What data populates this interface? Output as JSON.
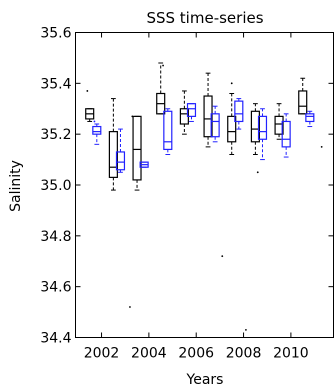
{
  "chart_data": {
    "type": "boxplot",
    "title": "SSS time-series",
    "xlabel": "Years",
    "ylabel": "Salinity",
    "xlim": [
      2000.9,
      2011.8
    ],
    "ylim": [
      34.4,
      35.6
    ],
    "x_ticks": [
      2002,
      2004,
      2006,
      2008,
      2010
    ],
    "y_ticks": [
      34.4,
      34.6,
      34.8,
      35.0,
      35.2,
      35.4,
      35.6
    ],
    "grid": false,
    "legend": "none",
    "series": [
      {
        "color": "#000000",
        "boxes": [
          {
            "x": 2001.5,
            "min": 35.25,
            "q1": 35.26,
            "median": 35.28,
            "q3": 35.3,
            "max": 35.3
          },
          {
            "x": 2002.5,
            "min": 34.98,
            "q1": 35.03,
            "median": 35.07,
            "q3": 35.21,
            "max": 35.34
          },
          {
            "x": 2003.5,
            "min": 34.98,
            "q1": 35.02,
            "median": 35.14,
            "q3": 35.27,
            "max": 35.27
          },
          {
            "x": 2004.5,
            "min": 35.28,
            "q1": 35.28,
            "median": 35.32,
            "q3": 35.36,
            "max": 35.48
          },
          {
            "x": 2005.5,
            "min": 35.2,
            "q1": 35.24,
            "median": 35.28,
            "q3": 35.3,
            "max": 35.37
          },
          {
            "x": 2006.5,
            "min": 35.15,
            "q1": 35.19,
            "median": 35.26,
            "q3": 35.35,
            "max": 35.44
          },
          {
            "x": 2007.5,
            "min": 35.12,
            "q1": 35.17,
            "median": 35.21,
            "q3": 35.27,
            "max": 35.36
          },
          {
            "x": 2008.5,
            "min": 35.12,
            "q1": 35.17,
            "median": 35.22,
            "q3": 35.29,
            "max": 35.32
          },
          {
            "x": 2009.5,
            "min": 35.18,
            "q1": 35.2,
            "median": 35.24,
            "q3": 35.27,
            "max": 35.32
          },
          {
            "x": 2010.5,
            "min": 35.28,
            "q1": 35.28,
            "median": 35.31,
            "q3": 35.37,
            "max": 35.42
          }
        ]
      },
      {
        "color": "#2222ff",
        "boxes": [
          {
            "x": 2001.8,
            "min": 35.16,
            "q1": 35.2,
            "median": 35.21,
            "q3": 35.23,
            "max": 35.24
          },
          {
            "x": 2002.8,
            "min": 35.05,
            "q1": 35.06,
            "median": 35.09,
            "q3": 35.13,
            "max": 35.22
          },
          {
            "x": 2003.8,
            "min": 35.07,
            "q1": 35.07,
            "median": 35.08,
            "q3": 35.09,
            "max": 35.09
          },
          {
            "x": 2004.8,
            "min": 35.12,
            "q1": 35.14,
            "median": 35.17,
            "q3": 35.29,
            "max": 35.3
          },
          {
            "x": 2005.8,
            "min": 35.25,
            "q1": 35.27,
            "median": 35.3,
            "q3": 35.32,
            "max": 35.32
          },
          {
            "x": 2006.8,
            "min": 35.17,
            "q1": 35.19,
            "median": 35.25,
            "q3": 35.28,
            "max": 35.31
          },
          {
            "x": 2007.8,
            "min": 35.22,
            "q1": 35.25,
            "median": 35.28,
            "q3": 35.33,
            "max": 35.34
          },
          {
            "x": 2008.8,
            "min": 35.1,
            "q1": 35.18,
            "median": 35.21,
            "q3": 35.27,
            "max": 35.3
          },
          {
            "x": 2009.8,
            "min": 35.11,
            "q1": 35.15,
            "median": 35.18,
            "q3": 35.25,
            "max": 35.28
          },
          {
            "x": 2010.8,
            "min": 35.23,
            "q1": 35.25,
            "median": 35.27,
            "q3": 35.28,
            "max": 35.29
          }
        ]
      }
    ],
    "outliers": [
      {
        "x": 2001.4,
        "y": 35.37,
        "color": "#000000"
      },
      {
        "x": 2001.7,
        "y": 35.25,
        "color": "#2222ff"
      },
      {
        "x": 2003.3,
        "y": 35.27,
        "color": "#000000"
      },
      {
        "x": 2004.6,
        "y": 35.47,
        "color": "#000000"
      },
      {
        "x": 2007.5,
        "y": 35.4,
        "color": "#000000"
      },
      {
        "x": 2008.6,
        "y": 35.05,
        "color": "#000000"
      },
      {
        "x": 2011.3,
        "y": 35.15,
        "color": "#000000"
      },
      {
        "x": 2003.2,
        "y": 34.52,
        "color": "#000000"
      },
      {
        "x": 2007.1,
        "y": 34.72,
        "color": "#000000"
      },
      {
        "x": 2008.1,
        "y": 34.43,
        "color": "#000000"
      }
    ]
  }
}
